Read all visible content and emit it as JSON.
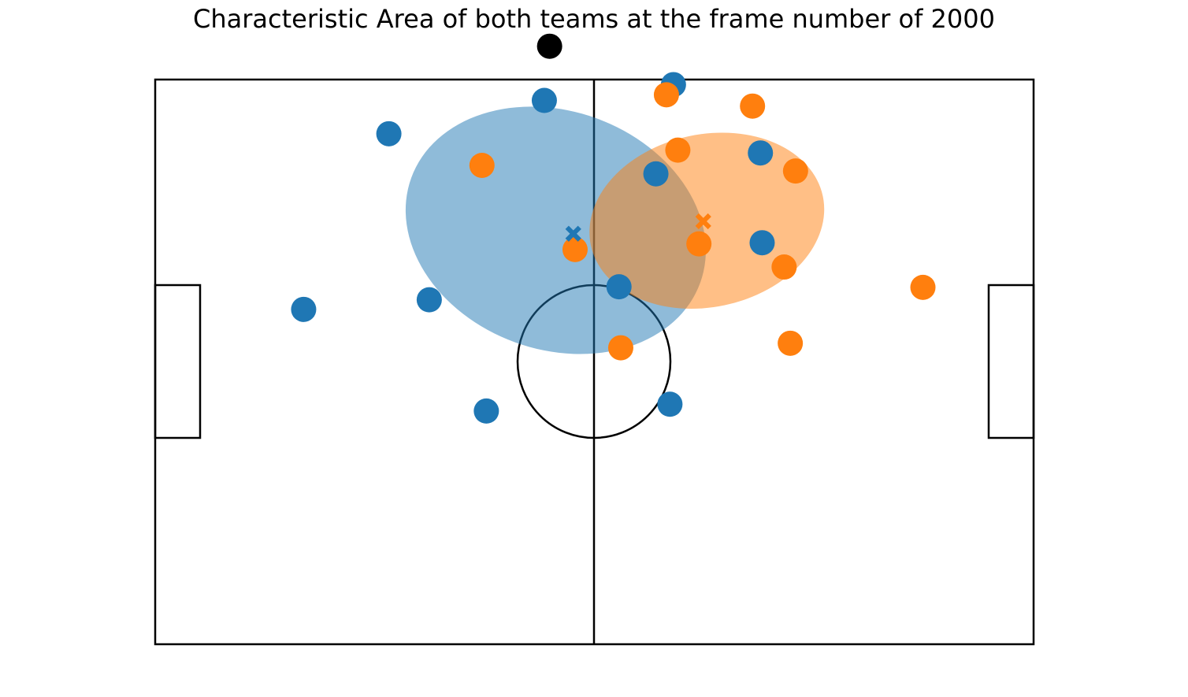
{
  "chart_data": {
    "type": "scatter",
    "title": "Characteristic Area of both teams at the frame number of 2000",
    "xlabel": "",
    "ylabel": "",
    "grid": false,
    "axes_visible": false,
    "xlim": [
      0,
      1.0
    ],
    "ylim": [
      0,
      1.0
    ],
    "series": [
      {
        "team": "blue",
        "color": "#1f77b4",
        "points": [
          {
            "x": 0.443,
            "y": 0.963
          },
          {
            "x": 0.59,
            "y": 0.991
          },
          {
            "x": 0.266,
            "y": 0.904
          },
          {
            "x": 0.689,
            "y": 0.87
          },
          {
            "x": 0.57,
            "y": 0.833
          },
          {
            "x": 0.691,
            "y": 0.711
          },
          {
            "x": 0.169,
            "y": 0.593
          },
          {
            "x": 0.312,
            "y": 0.61
          },
          {
            "x": 0.528,
            "y": 0.633
          },
          {
            "x": 0.377,
            "y": 0.413
          },
          {
            "x": 0.586,
            "y": 0.425
          }
        ],
        "centroid": {
          "x": 0.476,
          "y": 0.727
        },
        "area": {
          "cx": 0.456,
          "cy": 0.733,
          "rx": 0.175,
          "ry": 0.211,
          "angle_deg": -20
        }
      },
      {
        "team": "orange",
        "color": "#ff7f0e",
        "points": [
          {
            "x": 0.582,
            "y": 0.973
          },
          {
            "x": 0.68,
            "y": 0.953
          },
          {
            "x": 0.372,
            "y": 0.848
          },
          {
            "x": 0.595,
            "y": 0.875
          },
          {
            "x": 0.729,
            "y": 0.838
          },
          {
            "x": 0.478,
            "y": 0.699
          },
          {
            "x": 0.619,
            "y": 0.709
          },
          {
            "x": 0.716,
            "y": 0.668
          },
          {
            "x": 0.874,
            "y": 0.632
          },
          {
            "x": 0.53,
            "y": 0.525
          },
          {
            "x": 0.723,
            "y": 0.533
          }
        ],
        "centroid": {
          "x": 0.624,
          "y": 0.749
        },
        "area": {
          "cx": 0.628,
          "cy": 0.75,
          "rx": 0.135,
          "ry": 0.153,
          "angle_deg": 12
        }
      }
    ],
    "ball": {
      "x": 0.449,
      "y": 1.059,
      "color": "#000000"
    }
  },
  "colors": {
    "blue_team": "#1f77b4",
    "orange_team": "#ff7f0e",
    "ball": "#000000",
    "pitch_lines": "#000000"
  }
}
